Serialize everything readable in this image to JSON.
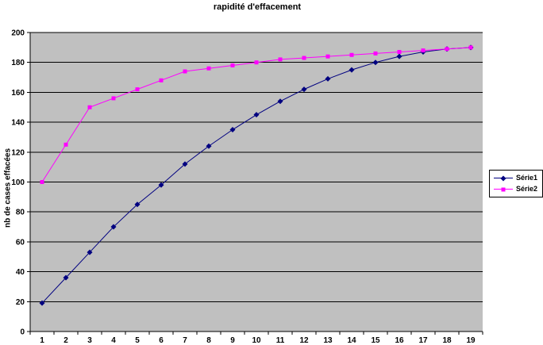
{
  "chart_data": {
    "type": "line",
    "title": "rapidité d'effacement",
    "xlabel": "",
    "ylabel": "nb de cases effacées",
    "categories": [
      1,
      2,
      3,
      4,
      5,
      6,
      7,
      8,
      9,
      10,
      11,
      12,
      13,
      14,
      15,
      16,
      17,
      18,
      19
    ],
    "series": [
      {
        "name": "Série1",
        "color": "#000080",
        "marker": "diamond",
        "values": [
          19,
          36,
          53,
          70,
          85,
          98,
          112,
          124,
          135,
          145,
          154,
          162,
          169,
          175,
          180,
          184,
          187,
          189,
          190
        ]
      },
      {
        "name": "Série2",
        "color": "#FF00FF",
        "marker": "square",
        "values": [
          100,
          125,
          150,
          156,
          162,
          168,
          174,
          176,
          178,
          180,
          182,
          183,
          184,
          185,
          186,
          187,
          188,
          189,
          190
        ]
      }
    ],
    "ylim": [
      0,
      200
    ],
    "ytick_step": 20,
    "grid": true,
    "legend_position": "right",
    "plot_bg": "#C0C0C0",
    "grid_color": "#000000",
    "axis_color": "#000000"
  }
}
